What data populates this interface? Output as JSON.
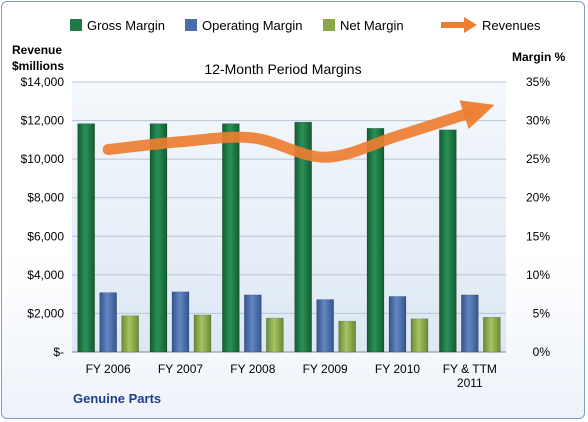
{
  "chart_data": {
    "type": "bar",
    "title": "12-Month Period Margins",
    "categories": [
      "FY 2006",
      "FY 2007",
      "FY 2008",
      "FY 2009",
      "FY 2010",
      "FY & TTM 2011"
    ],
    "left_axis": {
      "label_line1": "Revenue",
      "label_line2": "$millions",
      "ylim": [
        0,
        14000
      ],
      "ticks": [
        "$-",
        "$2,000",
        "$4,000",
        "$6,000",
        "$8,000",
        "$10,000",
        "$12,000",
        "$14,000"
      ]
    },
    "right_axis": {
      "label": "Margin %",
      "ylim": [
        0,
        35
      ],
      "ticks": [
        "0%",
        "5%",
        "10%",
        "15%",
        "20%",
        "25%",
        "30%",
        "35%"
      ]
    },
    "series": [
      {
        "name": "Gross Margin",
        "kind": "bar",
        "axis": "right",
        "color": "#1f7a45",
        "values": [
          29.6,
          29.6,
          29.6,
          29.8,
          29.0,
          28.8
        ]
      },
      {
        "name": "Operating Margin",
        "kind": "bar",
        "axis": "right",
        "color": "#4a6eaa",
        "values": [
          7.7,
          7.8,
          7.4,
          6.8,
          7.2,
          7.4
        ]
      },
      {
        "name": "Net Margin",
        "kind": "bar",
        "axis": "right",
        "color": "#8aa84a",
        "values": [
          4.7,
          4.8,
          4.4,
          4.0,
          4.3,
          4.5
        ]
      },
      {
        "name": "Revenues",
        "kind": "line",
        "axis": "left",
        "color": "#ed7d31",
        "values": [
          10500,
          10900,
          11100,
          10100,
          11200,
          12400
        ]
      }
    ],
    "legend_position": "top",
    "grid": true
  },
  "footer": {
    "company": "Genuine Parts"
  }
}
